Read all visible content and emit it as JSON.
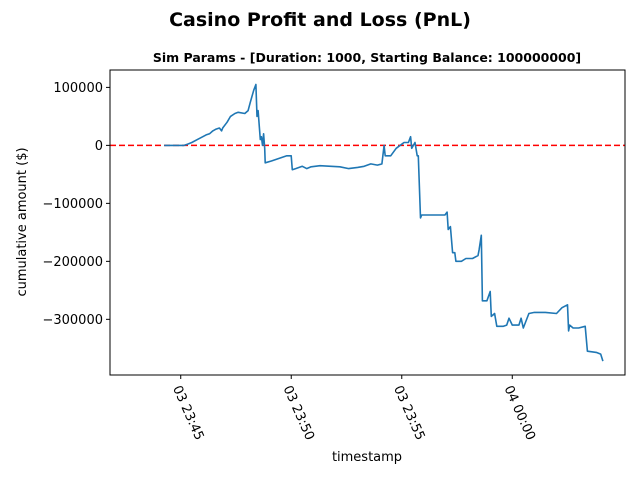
{
  "chart_data": {
    "type": "line",
    "title": "Casino Profit and Loss (PnL)",
    "subtitle": "Sim Params - [Duration: 1000, Starting Balance: 100000000]",
    "xlabel": "timestamp",
    "ylabel": "cumulative amount ($)",
    "x_unit": "minutes after 03 23:45",
    "xlim": [
      -3.2,
      20.1
    ],
    "ylim": [
      -396000,
      130000
    ],
    "x_ticks": [
      {
        "value": 0,
        "label": "03 23:45"
      },
      {
        "value": 5,
        "label": "03 23:50"
      },
      {
        "value": 10,
        "label": "03 23:55"
      },
      {
        "value": 15,
        "label": "04 00:00"
      }
    ],
    "y_ticks": [
      {
        "value": 100000,
        "label": "100000"
      },
      {
        "value": 0,
        "label": "0"
      },
      {
        "value": -100000,
        "label": "−100000"
      },
      {
        "value": -200000,
        "label": "−200000"
      },
      {
        "value": -300000,
        "label": "−300000"
      }
    ],
    "grid": false,
    "reference_line": {
      "y": 0,
      "color": "#ff0000",
      "style": "dashed"
    },
    "series": [
      {
        "color": "#1f77b4",
        "points": [
          [
            -0.75,
            0
          ],
          [
            -0.3,
            0
          ],
          [
            0.15,
            0
          ],
          [
            0.3,
            2000
          ],
          [
            0.5,
            5000
          ],
          [
            0.75,
            10000
          ],
          [
            1.0,
            15000
          ],
          [
            1.15,
            18000
          ],
          [
            1.3,
            20000
          ],
          [
            1.45,
            25000
          ],
          [
            1.6,
            28000
          ],
          [
            1.75,
            30000
          ],
          [
            1.85,
            25000
          ],
          [
            1.9,
            30000
          ],
          [
            2.1,
            40000
          ],
          [
            2.25,
            50000
          ],
          [
            2.45,
            55000
          ],
          [
            2.6,
            57000
          ],
          [
            2.9,
            55000
          ],
          [
            3.05,
            60000
          ],
          [
            3.15,
            75000
          ],
          [
            3.3,
            95000
          ],
          [
            3.4,
            105000
          ],
          [
            3.45,
            50000
          ],
          [
            3.5,
            60000
          ],
          [
            3.6,
            10000
          ],
          [
            3.65,
            15000
          ],
          [
            3.7,
            0
          ],
          [
            3.75,
            20000
          ],
          [
            3.8,
            -5000
          ],
          [
            3.82,
            -30000
          ],
          [
            4.1,
            -27000
          ],
          [
            4.4,
            -23000
          ],
          [
            4.8,
            -18000
          ],
          [
            5.0,
            -18000
          ],
          [
            5.05,
            -42000
          ],
          [
            5.2,
            -40000
          ],
          [
            5.5,
            -36000
          ],
          [
            5.7,
            -40000
          ],
          [
            5.9,
            -37000
          ],
          [
            6.3,
            -35000
          ],
          [
            6.8,
            -36000
          ],
          [
            7.2,
            -37000
          ],
          [
            7.6,
            -40000
          ],
          [
            8.0,
            -38000
          ],
          [
            8.3,
            -36000
          ],
          [
            8.6,
            -32000
          ],
          [
            8.9,
            -34000
          ],
          [
            9.1,
            -32000
          ],
          [
            9.2,
            0
          ],
          [
            9.25,
            -18000
          ],
          [
            9.5,
            -18000
          ],
          [
            9.75,
            -5000
          ],
          [
            10.1,
            5000
          ],
          [
            10.3,
            5000
          ],
          [
            10.4,
            15000
          ],
          [
            10.45,
            -5000
          ],
          [
            10.6,
            5000
          ],
          [
            10.7,
            -18000
          ],
          [
            10.75,
            -18000
          ],
          [
            10.85,
            -125000
          ],
          [
            10.9,
            -120000
          ],
          [
            11.2,
            -120000
          ],
          [
            11.6,
            -120000
          ],
          [
            11.95,
            -120000
          ],
          [
            12.05,
            -115000
          ],
          [
            12.1,
            -145000
          ],
          [
            12.2,
            -140000
          ],
          [
            12.3,
            -185000
          ],
          [
            12.4,
            -185000
          ],
          [
            12.45,
            -200000
          ],
          [
            12.7,
            -200000
          ],
          [
            12.9,
            -195000
          ],
          [
            13.2,
            -195000
          ],
          [
            13.45,
            -190000
          ],
          [
            13.5,
            -180000
          ],
          [
            13.6,
            -155000
          ],
          [
            13.65,
            -268000
          ],
          [
            13.85,
            -268000
          ],
          [
            14.0,
            -252000
          ],
          [
            14.05,
            -295000
          ],
          [
            14.2,
            -290000
          ],
          [
            14.3,
            -312000
          ],
          [
            14.6,
            -312000
          ],
          [
            14.75,
            -310000
          ],
          [
            14.85,
            -298000
          ],
          [
            15.0,
            -310000
          ],
          [
            15.3,
            -310000
          ],
          [
            15.4,
            -298000
          ],
          [
            15.5,
            -315000
          ],
          [
            15.75,
            -290000
          ],
          [
            16.0,
            -288000
          ],
          [
            16.5,
            -288000
          ],
          [
            17.0,
            -290000
          ],
          [
            17.25,
            -280000
          ],
          [
            17.5,
            -275000
          ],
          [
            17.55,
            -320000
          ],
          [
            17.6,
            -310000
          ],
          [
            17.75,
            -315000
          ],
          [
            18.0,
            -315000
          ],
          [
            18.3,
            -312000
          ],
          [
            18.4,
            -355000
          ],
          [
            18.8,
            -357000
          ],
          [
            19.0,
            -360000
          ],
          [
            19.1,
            -372000
          ]
        ]
      }
    ]
  }
}
